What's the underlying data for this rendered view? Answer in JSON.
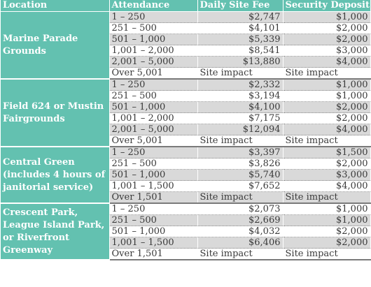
{
  "headers": [
    "Location",
    "Attendance",
    "Daily Site Fee",
    "Security Deposit"
  ],
  "groups": [
    {
      "location": "Marine Parade Grounds",
      "rows": [
        {
          "attendance": "1 – 250",
          "fee": "$2,747",
          "deposit": "$1,000"
        },
        {
          "attendance": "251 – 500",
          "fee": "$4,101",
          "deposit": "$2,000"
        },
        {
          "attendance": "501 – 1,000",
          "fee": "$5,339",
          "deposit": "$2,000"
        },
        {
          "attendance": "1,001 – 2,000",
          "fee": "$8,541",
          "deposit": "$3,000"
        },
        {
          "attendance": "2,001 – 5,000",
          "fee": "$13,880",
          "deposit": "$4,000"
        },
        {
          "attendance": "Over 5,001",
          "fee": "Site impact",
          "deposit": "Site impact"
        }
      ]
    },
    {
      "location": "Field 624 or Mustin Fairgrounds",
      "rows": [
        {
          "attendance": "1 – 250",
          "fee": "$2,332",
          "deposit": "$1,000"
        },
        {
          "attendance": "251 – 500",
          "fee": "$3,194",
          "deposit": "$1,000"
        },
        {
          "attendance": "501 – 1,000",
          "fee": "$4,100",
          "deposit": "$2,000"
        },
        {
          "attendance": "1,001 – 2,000",
          "fee": "$7,175",
          "deposit": "$2,000"
        },
        {
          "attendance": "2,001 – 5,000",
          "fee": "$12,094",
          "deposit": "$4,000"
        },
        {
          "attendance": "Over 5,001",
          "fee": "Site impact",
          "deposit": "Site impact"
        }
      ]
    },
    {
      "location": "Central Green (includes 4 hours of janitorial service)",
      "rows": [
        {
          "attendance": "1 – 250",
          "fee": "$3,397",
          "deposit": "$1,500"
        },
        {
          "attendance": "251 – 500",
          "fee": "$3,826",
          "deposit": "$2,000"
        },
        {
          "attendance": "501 – 1,000",
          "fee": "$5,740",
          "deposit": "$3,000"
        },
        {
          "attendance": "1,001 – 1,500",
          "fee": "$7,652",
          "deposit": "$4,000"
        },
        {
          "attendance": "Over 1,501",
          "fee": "Site impact",
          "deposit": "Site impact"
        }
      ]
    },
    {
      "location": "Crescent Park, League Island Park, or Riverfront Greenway",
      "rows": [
        {
          "attendance": "1 – 250",
          "fee": "$2,073",
          "deposit": "$1,000"
        },
        {
          "attendance": "251 – 500",
          "fee": "$2,669",
          "deposit": "$1,000"
        },
        {
          "attendance": "501 – 1,000",
          "fee": "$4,032",
          "deposit": "$2,000"
        },
        {
          "attendance": "1,001 – 1,500",
          "fee": "$6,406",
          "deposit": "$2,000"
        },
        {
          "attendance": "Over 1,501",
          "fee": "Site impact",
          "deposit": "Site impact"
        }
      ]
    }
  ]
}
